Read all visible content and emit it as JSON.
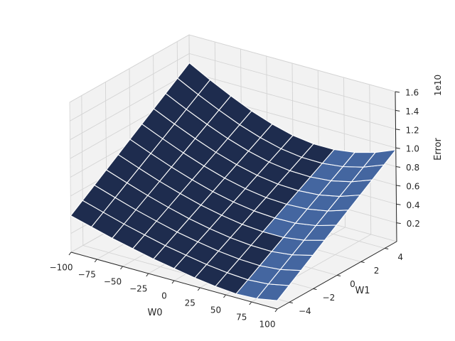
{
  "chart_data": {
    "type": "surface3d",
    "title": "",
    "xlabel": "W0",
    "ylabel": "W1",
    "zlabel": "Error",
    "z_offset_label": "1e10",
    "x_ticks": [
      -100,
      -75,
      -50,
      -25,
      0,
      25,
      50,
      75,
      100
    ],
    "y_ticks": [
      -4,
      -2,
      0,
      2,
      4
    ],
    "z_ticks": [
      0.2,
      0.4,
      0.6,
      0.8,
      1.0,
      1.2,
      1.4,
      1.6
    ],
    "x_tick_labels": [
      "−100",
      "−75",
      "−50",
      "−25",
      "0",
      "25",
      "50",
      "75",
      "100"
    ],
    "y_tick_labels": [
      "−4",
      "−2",
      "0",
      "2",
      "4"
    ],
    "z_tick_labels": [
      "0.2",
      "0.4",
      "0.6",
      "0.8",
      "1.0",
      "1.2",
      "1.4",
      "1.6"
    ],
    "xlim": [
      -100,
      100
    ],
    "ylim": [
      -5,
      5
    ],
    "zlim": [
      0,
      1.6
    ],
    "grid": true,
    "surface": {
      "x_range": [
        -100,
        100
      ],
      "y_range": [
        -5,
        5
      ],
      "divisions": 10,
      "z_corners": {
        "x_min_y_max": 1.3,
        "x_min_y_min": 0.39,
        "x_max_y_max": 0.98,
        "x_max_y_min": 0.09
      },
      "z_at_y_min": [
        0.39,
        0.33,
        0.27,
        0.22,
        0.17,
        0.13,
        0.09,
        0.06,
        0.04,
        0.05,
        0.09
      ],
      "z_at_y_max": [
        1.3,
        1.18,
        1.07,
        0.97,
        0.89,
        0.83,
        0.8,
        0.8,
        0.83,
        0.89,
        0.98
      ]
    },
    "colors": {
      "surface": "#4466a0",
      "surface_dark": "#1e2c4e",
      "grid": "#d4d4d4",
      "pane": "#f2f2f2",
      "mesh_line": "#ffffff"
    }
  }
}
